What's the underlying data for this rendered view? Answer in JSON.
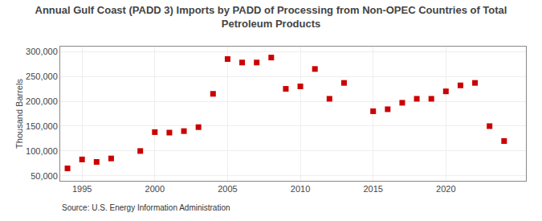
{
  "chart_data": {
    "type": "scatter",
    "title": "Annual Gulf Coast (PADD 3) Imports by PADD of Processing from Non-OPEC Countries of Total\nPetroleum Products",
    "ylabel": "Thousand Barrels",
    "annotations": [
      "Source: U.S. Energy Information Administration"
    ],
    "x": [
      1994,
      1995,
      1996,
      1997,
      1999,
      2000,
      2001,
      2002,
      2003,
      2004,
      2005,
      2006,
      2007,
      2008,
      2009,
      2010,
      2011,
      2012,
      2013,
      2015,
      2016,
      2017,
      2018,
      2019,
      2020,
      2021,
      2022,
      2023,
      2024
    ],
    "values": [
      65000,
      83000,
      78000,
      85000,
      100000,
      138000,
      137000,
      140000,
      148000,
      215000,
      285000,
      278000,
      278000,
      288000,
      225000,
      230000,
      265000,
      205000,
      237000,
      180000,
      184000,
      197000,
      205000,
      205000,
      220000,
      232000,
      237000,
      150000,
      120000
    ],
    "color": "#cc0000",
    "marker": "square",
    "xlim": [
      1993.5,
      2025.5
    ],
    "xticks": [
      1995,
      2000,
      2005,
      2010,
      2015,
      2020
    ],
    "ylim": [
      40000,
      310000
    ],
    "yticks": [
      {
        "value": 50000,
        "label": "50,000"
      },
      {
        "value": 100000,
        "label": "100,000"
      },
      {
        "value": 150000,
        "label": "150,000"
      },
      {
        "value": 200000,
        "label": "200,000"
      },
      {
        "value": 250000,
        "label": "250,000"
      },
      {
        "value": 300000,
        "label": "300,000"
      }
    ],
    "grid": true
  }
}
